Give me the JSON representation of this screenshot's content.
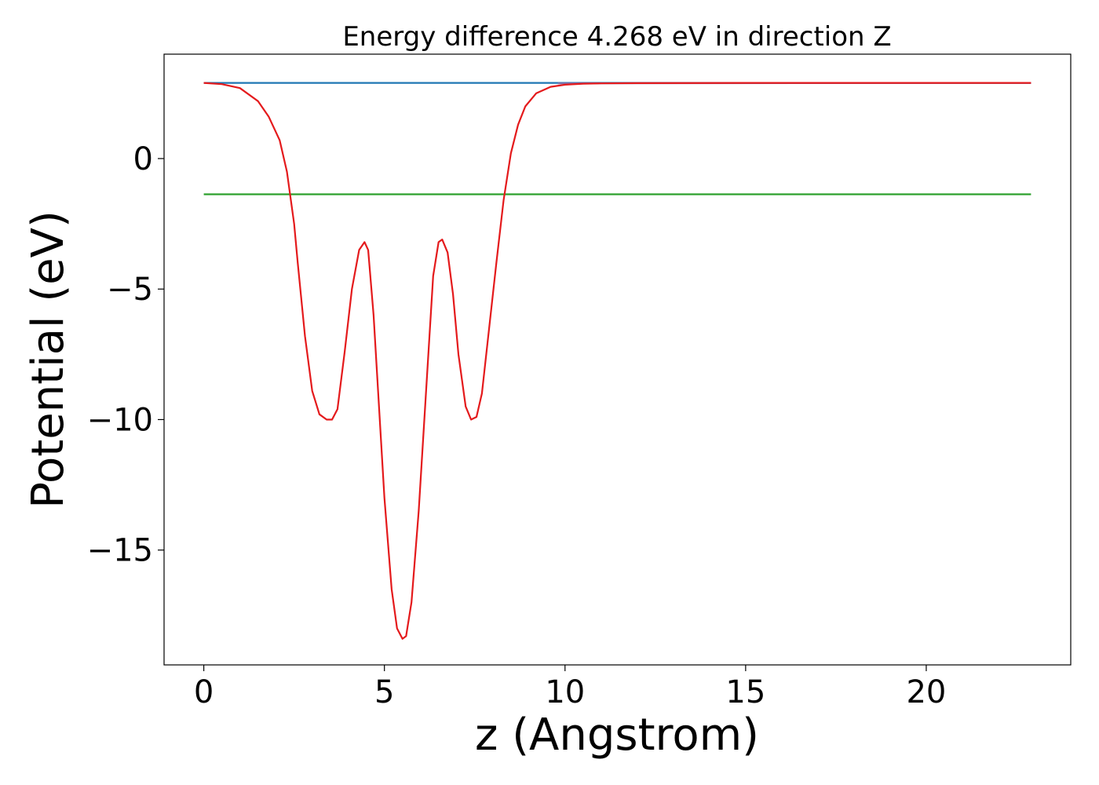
{
  "chart_data": {
    "type": "line",
    "title": "Energy difference 4.268 eV in direction Z",
    "xlabel": "z (Angstrom)",
    "ylabel": "Potential (eV)",
    "xlim": [
      -1.1,
      24.0
    ],
    "ylim": [
      -19.4,
      4.0
    ],
    "xticks": [
      0,
      5,
      10,
      15,
      20
    ],
    "xtick_labels": [
      "0",
      "5",
      "10",
      "15",
      "20"
    ],
    "yticks": [
      0,
      -5,
      -10,
      -15
    ],
    "ytick_labels": [
      "0",
      "−5",
      "−10",
      "−15"
    ],
    "grid": false,
    "series": [
      {
        "color": "#1f77b4",
        "x": [
          0,
          22.9
        ],
        "y": [
          2.9,
          2.9
        ]
      },
      {
        "color": "#2ca02c",
        "x": [
          0,
          22.9
        ],
        "y": [
          -1.37,
          -1.37
        ]
      },
      {
        "color": "#7f6fa8",
        "x": [
          9.8,
          22.9
        ],
        "y": [
          2.88,
          2.9
        ]
      },
      {
        "color": "#e41a1c",
        "x": [
          0,
          0.5,
          1.0,
          1.5,
          1.8,
          2.1,
          2.3,
          2.5,
          2.6,
          2.8,
          3.0,
          3.2,
          3.4,
          3.55,
          3.7,
          3.9,
          4.1,
          4.3,
          4.45,
          4.55,
          4.7,
          4.85,
          5.0,
          5.2,
          5.35,
          5.5,
          5.6,
          5.75,
          5.95,
          6.15,
          6.35,
          6.5,
          6.6,
          6.75,
          6.9,
          7.05,
          7.25,
          7.4,
          7.55,
          7.7,
          7.9,
          8.1,
          8.3,
          8.5,
          8.7,
          8.9,
          9.2,
          9.6,
          10.0,
          10.5,
          11.0,
          12.0,
          15.0,
          20.0,
          22.9
        ],
        "y": [
          2.9,
          2.85,
          2.7,
          2.2,
          1.6,
          0.7,
          -0.5,
          -2.5,
          -4.0,
          -6.8,
          -8.9,
          -9.8,
          -10.0,
          -10.0,
          -9.6,
          -7.4,
          -5.0,
          -3.5,
          -3.2,
          -3.5,
          -6.0,
          -9.5,
          -13.0,
          -16.5,
          -18.0,
          -18.4,
          -18.3,
          -17.0,
          -13.5,
          -9.0,
          -4.5,
          -3.2,
          -3.1,
          -3.6,
          -5.2,
          -7.5,
          -9.5,
          -10.0,
          -9.9,
          -9.0,
          -6.5,
          -4.0,
          -1.6,
          0.2,
          1.3,
          2.0,
          2.5,
          2.75,
          2.83,
          2.87,
          2.88,
          2.89,
          2.9,
          2.9,
          2.9
        ]
      }
    ]
  }
}
